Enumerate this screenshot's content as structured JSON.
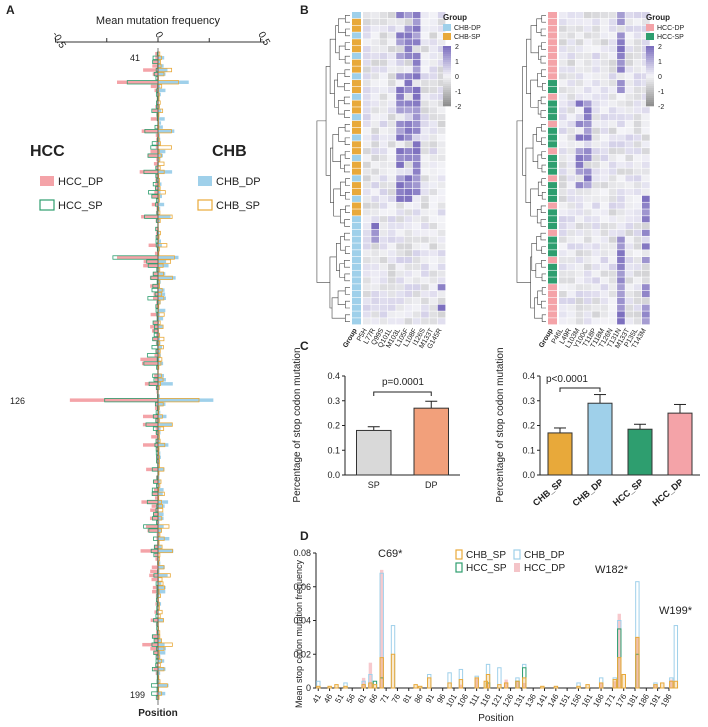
{
  "panels": {
    "A": "A",
    "B": "B",
    "C": "C",
    "D": "D"
  },
  "colors": {
    "hcc_dp": "#f4a3a8",
    "hcc_sp": "#2e9e6f",
    "chb_dp": "#9fd0ea",
    "chb_sp": "#e8a93a",
    "heat_low": "#8f8f8f",
    "heat_mid": "#f4f4f8",
    "heat_high": "#7d70bf",
    "bar_sp": "#d9d9d9",
    "bar_dp": "#f2a07b"
  },
  "chart_data": [
    {
      "id": "A",
      "type": "bar",
      "orientation": "horizontal-butterfly",
      "title": "Mean mutation frequency",
      "ylabel": "Position",
      "xlim": [
        -0.5,
        0.5
      ],
      "xticks": [
        "-0.5",
        "0",
        "0.5"
      ],
      "position_labels": [
        "41",
        "126",
        "199"
      ],
      "left_group": "HCC",
      "right_group": "CHB",
      "legend": [
        "HCC_DP",
        "HCC_SP",
        "CHB_DP",
        "CHB_SP"
      ],
      "positions_start": 41,
      "positions_end": 199,
      "highlight": {
        "126": {
          "HCC_DP": -0.43,
          "HCC_SP": -0.26,
          "CHB_DP": 0.27,
          "CHB_SP": 0.2
        }
      }
    },
    {
      "id": "B1",
      "type": "heatmap",
      "legend_title": "Group",
      "groups": [
        "CHB-DP",
        "CHB-SP"
      ],
      "scale": [
        "2",
        "1",
        "0",
        "-1",
        "-2"
      ],
      "columns": [
        "Group",
        "P5H",
        "L77R",
        "Q99S",
        "Q101L",
        "M103L",
        "L105F",
        "L108F",
        "I126S",
        "M133T",
        "G145R"
      ]
    },
    {
      "id": "B2",
      "type": "heatmap",
      "legend_title": "Group",
      "groups": [
        "HCC-DP",
        "HCC-SP"
      ],
      "scale": [
        "2",
        "1",
        "0",
        "-1",
        "-2"
      ],
      "columns": [
        "Group",
        "P46L",
        "L49R",
        "L103M",
        "Y100C",
        "T118P",
        "T118M",
        "T126N",
        "T131N",
        "M133T",
        "P135L",
        "T143M"
      ]
    },
    {
      "id": "C1",
      "type": "bar",
      "categories": [
        "SP",
        "DP"
      ],
      "values": [
        0.18,
        0.27
      ],
      "errors": [
        0.015,
        0.028
      ],
      "ylabel": "Percentage of stop codon mutation",
      "ylim": [
        0,
        0.4
      ],
      "yticks": [
        "0.0",
        "0.1",
        "0.2",
        "0.3",
        "0.4"
      ],
      "annotation": "p=0.0001"
    },
    {
      "id": "C2",
      "type": "bar",
      "categories": [
        "CHB_SP",
        "CHB_DP",
        "HCC_SP",
        "HCC_DP"
      ],
      "values": [
        0.17,
        0.29,
        0.185,
        0.25
      ],
      "errors": [
        0.02,
        0.035,
        0.02,
        0.035
      ],
      "ylabel": "Percentage of stop codon mutation",
      "ylim": [
        0,
        0.4
      ],
      "yticks": [
        "0.0",
        "0.1",
        "0.2",
        "0.3",
        "0.4"
      ],
      "annotation": "p<0.0001"
    },
    {
      "id": "D",
      "type": "bar",
      "ylabel": "Mean stop codon mutation frequency",
      "xlabel": "Position",
      "ylim": [
        0,
        0.08
      ],
      "yticks": [
        "0",
        "0.02",
        "0.04",
        "0.06",
        "0.08"
      ],
      "xticks": [
        "41",
        "46",
        "51",
        "56",
        "61",
        "66",
        "71",
        "76",
        "81",
        "86",
        "91",
        "96",
        "101",
        "106",
        "111",
        "116",
        "121",
        "126",
        "131",
        "136",
        "141",
        "146",
        "151",
        "156",
        "161",
        "166",
        "171",
        "176",
        "181",
        "186",
        "191",
        "196"
      ],
      "legend": [
        "CHB_SP",
        "CHB_DP",
        "HCC_SP",
        "HCC_DP"
      ],
      "annotations": [
        "C69*",
        "W182*",
        "W199*"
      ],
      "series": [
        {
          "name": "CHB_SP",
          "x": [
            41,
            46,
            49,
            53,
            61,
            64,
            66,
            69,
            74,
            84,
            86,
            90,
            99,
            104,
            111,
            115,
            116,
            121,
            124,
            129,
            132,
            140,
            146,
            156,
            160,
            166,
            172,
            174,
            176,
            182,
            190,
            193,
            197,
            199
          ],
          "values": [
            0.001,
            0.001,
            0.002,
            0.001,
            0.002,
            0.003,
            0.002,
            0.018,
            0.02,
            0.002,
            0.001,
            0.006,
            0.003,
            0.005,
            0.006,
            0.004,
            0.008,
            0.002,
            0.003,
            0.004,
            0.006,
            0.001,
            0.001,
            0.001,
            0.002,
            0.003,
            0.005,
            0.018,
            0.008,
            0.03,
            0.002,
            0.003,
            0.004,
            0.004
          ]
        },
        {
          "name": "CHB_DP",
          "x": [
            41,
            53,
            61,
            64,
            69,
            74,
            90,
            99,
            104,
            111,
            116,
            121,
            129,
            132,
            156,
            166,
            172,
            174,
            182,
            190,
            197,
            199
          ],
          "values": [
            0.004,
            0.003,
            0.004,
            0.008,
            0.068,
            0.037,
            0.008,
            0.009,
            0.011,
            0.007,
            0.014,
            0.012,
            0.006,
            0.014,
            0.003,
            0.006,
            0.006,
            0.04,
            0.063,
            0.003,
            0.006,
            0.037
          ]
        },
        {
          "name": "HCC_SP",
          "x": [
            66,
            69,
            116,
            129,
            132,
            174,
            182
          ],
          "values": [
            0.004,
            0.006,
            0.003,
            0.004,
            0.012,
            0.035,
            0.02
          ]
        },
        {
          "name": "HCC_DP",
          "x": [
            61,
            64,
            69,
            104,
            111,
            116,
            124,
            129,
            132,
            166,
            172,
            174,
            182,
            190,
            197
          ],
          "values": [
            0.006,
            0.015,
            0.07,
            0.002,
            0.006,
            0.003,
            0.005,
            0.004,
            0.003,
            0.003,
            0.004,
            0.044,
            0.03,
            0.002,
            0.005
          ]
        }
      ]
    }
  ]
}
